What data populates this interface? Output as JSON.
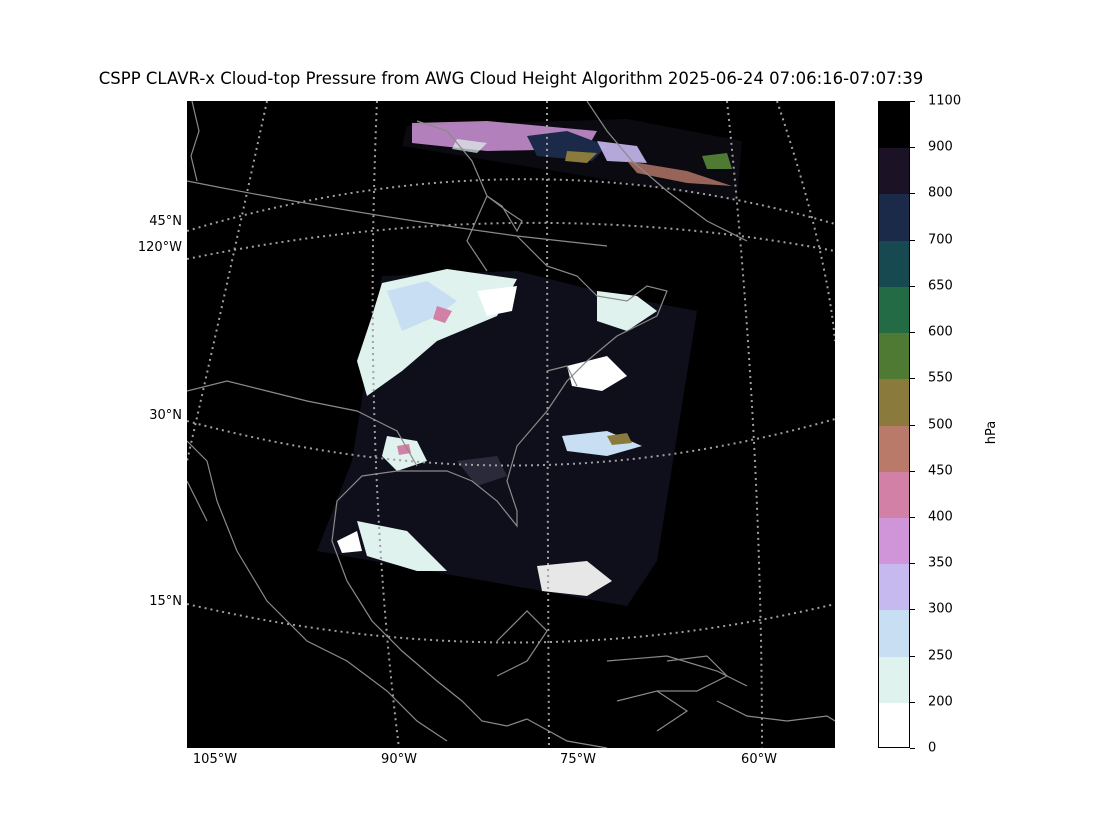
{
  "title": "CSPP CLAVR-x Cloud-top Pressure from AWG Cloud Height Algorithm 2025-06-24 07:06:16-07:07:39",
  "map": {
    "lat_labels": [
      "45°N",
      "30°N",
      "15°N"
    ],
    "lon_left_label": "120°W",
    "lon_bottom_labels": [
      "105°W",
      "90°W",
      "75°W",
      "60°W"
    ]
  },
  "colorbar": {
    "unit": "hPa",
    "tick_labels": [
      "1100",
      "900",
      "800",
      "700",
      "650",
      "600",
      "550",
      "500",
      "450",
      "400",
      "350",
      "300",
      "250",
      "200",
      "0"
    ],
    "colors": [
      "#000000",
      "#1c1226",
      "#1c2a4a",
      "#174a50",
      "#236b44",
      "#4f7a33",
      "#8a7a3c",
      "#b97a6a",
      "#d380a6",
      "#d095d8",
      "#c5b9f0",
      "#c8def2",
      "#dff2ee",
      "#ffffff"
    ]
  }
}
